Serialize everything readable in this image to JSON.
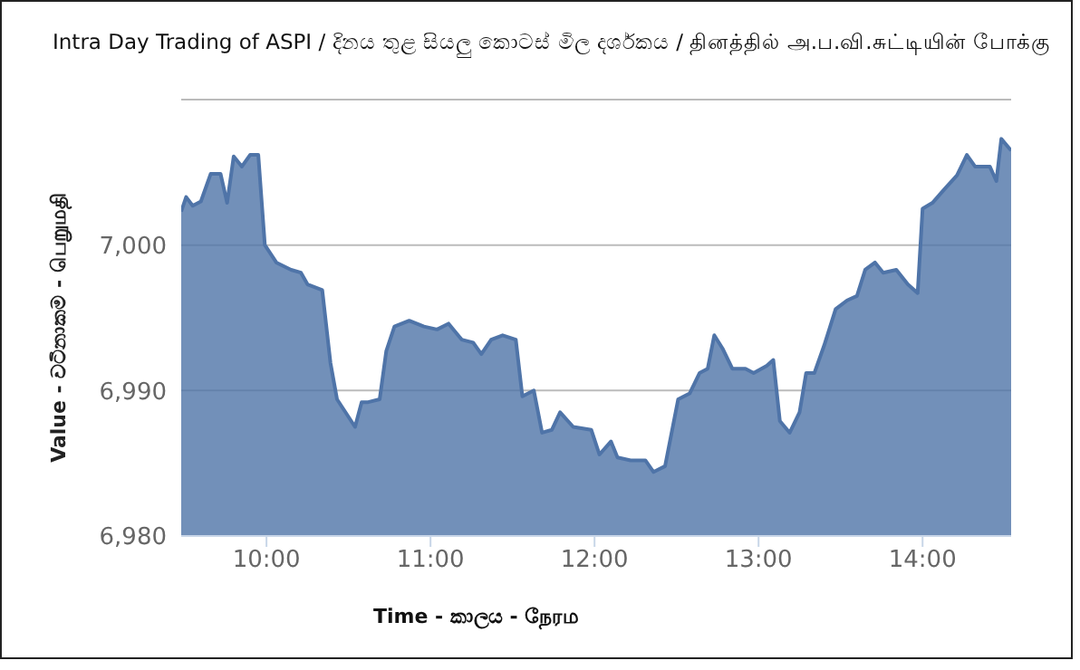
{
  "chart_data": {
    "type": "area",
    "title": "Intra Day Trading of ASPI / දිනය තුළ සියලු කොටස් මිල දර්ශකය  / தினத்தில் அ.ப.வி.சுட்டியின் போக்கு",
    "xlabel": "Time - කාලය - நேரம",
    "ylabel": "Value - වටිනාකම - பெறுமதி",
    "x": [
      9.48,
      9.51,
      9.55,
      9.6,
      9.66,
      9.72,
      9.76,
      9.8,
      9.85,
      9.9,
      9.95,
      9.99,
      10.06,
      10.15,
      10.21,
      10.25,
      10.34,
      10.39,
      10.43,
      10.54,
      10.58,
      10.62,
      10.69,
      10.73,
      10.78,
      10.87,
      10.96,
      11.04,
      11.11,
      11.19,
      11.26,
      11.31,
      11.37,
      11.44,
      11.52,
      11.56,
      11.63,
      11.68,
      11.74,
      11.79,
      11.87,
      11.98,
      12.03,
      12.1,
      12.14,
      12.22,
      12.31,
      12.36,
      12.43,
      12.51,
      12.58,
      12.64,
      12.69,
      12.73,
      12.78,
      12.84,
      12.92,
      12.97,
      13.05,
      13.09,
      13.13,
      13.19,
      13.25,
      13.29,
      13.34,
      13.4,
      13.47,
      13.54,
      13.6,
      13.65,
      13.71,
      13.76,
      13.84,
      13.91,
      13.97,
      14.0,
      14.06,
      14.13,
      14.21,
      14.27,
      14.32,
      14.41,
      14.45,
      14.48,
      14.54
    ],
    "series": [
      {
        "color": "#4f74a8",
        "values": [
          7002.3,
          7003.3,
          7002.7,
          7003.0,
          7004.9,
          7004.9,
          7002.9,
          7006.1,
          7005.4,
          7006.2,
          7006.2,
          7000.0,
          6998.8,
          6998.3,
          6998.1,
          6997.3,
          6996.9,
          6991.9,
          6989.4,
          6987.5,
          6989.2,
          6989.2,
          6989.4,
          6992.7,
          6994.4,
          6994.8,
          6994.4,
          6994.2,
          6994.6,
          6993.5,
          6993.3,
          6992.5,
          6993.5,
          6993.8,
          6993.5,
          6989.6,
          6990.0,
          6987.1,
          6987.3,
          6988.5,
          6987.5,
          6987.3,
          6985.6,
          6986.5,
          6985.4,
          6985.2,
          6985.2,
          6984.4,
          6984.8,
          6989.4,
          6989.8,
          6991.2,
          6991.5,
          6993.8,
          6992.9,
          6991.5,
          6991.5,
          6991.2,
          6991.7,
          6992.1,
          6987.9,
          6987.1,
          6988.5,
          6991.2,
          6991.2,
          6993.1,
          6995.6,
          6996.2,
          6996.5,
          6998.3,
          6998.8,
          6998.1,
          6998.3,
          6997.3,
          6996.7,
          7002.5,
          7002.9,
          7003.8,
          7004.8,
          7006.2,
          7005.4,
          7005.4,
          7004.4,
          7007.3,
          7006.5
        ]
      }
    ],
    "xlim": [
      9.48,
      14.54
    ],
    "xticks": [
      {
        "value": 10,
        "label": "10:00"
      },
      {
        "value": 11,
        "label": "11:00"
      },
      {
        "value": 12,
        "label": "12:00"
      },
      {
        "value": 13,
        "label": "13:00"
      },
      {
        "value": 14,
        "label": "14:00"
      }
    ],
    "ylim": [
      6980,
      7010
    ],
    "yticks": [
      {
        "value": 6980,
        "label": "6,980"
      },
      {
        "value": 6990,
        "label": "6,990"
      },
      {
        "value": 7000,
        "label": "7,000"
      },
      {
        "value": 7010,
        "label": null
      }
    ],
    "grid": "y",
    "marker": "none",
    "line_style": "solid"
  }
}
